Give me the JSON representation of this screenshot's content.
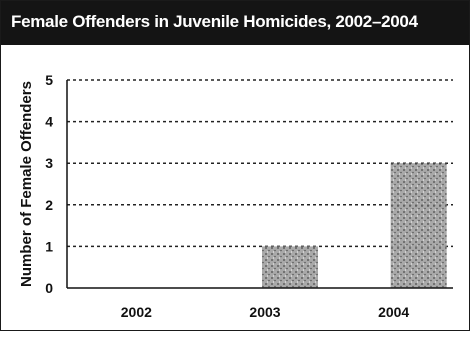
{
  "chart_data": {
    "type": "bar",
    "title": "Female Offenders in Juvenile Homicides, 2002–2004",
    "xlabel": "",
    "ylabel": "Number of Female Offenders",
    "categories": [
      "2002",
      "2003",
      "2004"
    ],
    "values": [
      0,
      1,
      3
    ],
    "ylim": [
      0,
      5
    ],
    "yticks": [
      "0",
      "1",
      "2",
      "3",
      "4",
      "5"
    ],
    "grid": true,
    "legend": "none",
    "colors": {
      "bar": "#6e6e6e",
      "grid": "#222222",
      "title_bg": "#141414"
    }
  }
}
